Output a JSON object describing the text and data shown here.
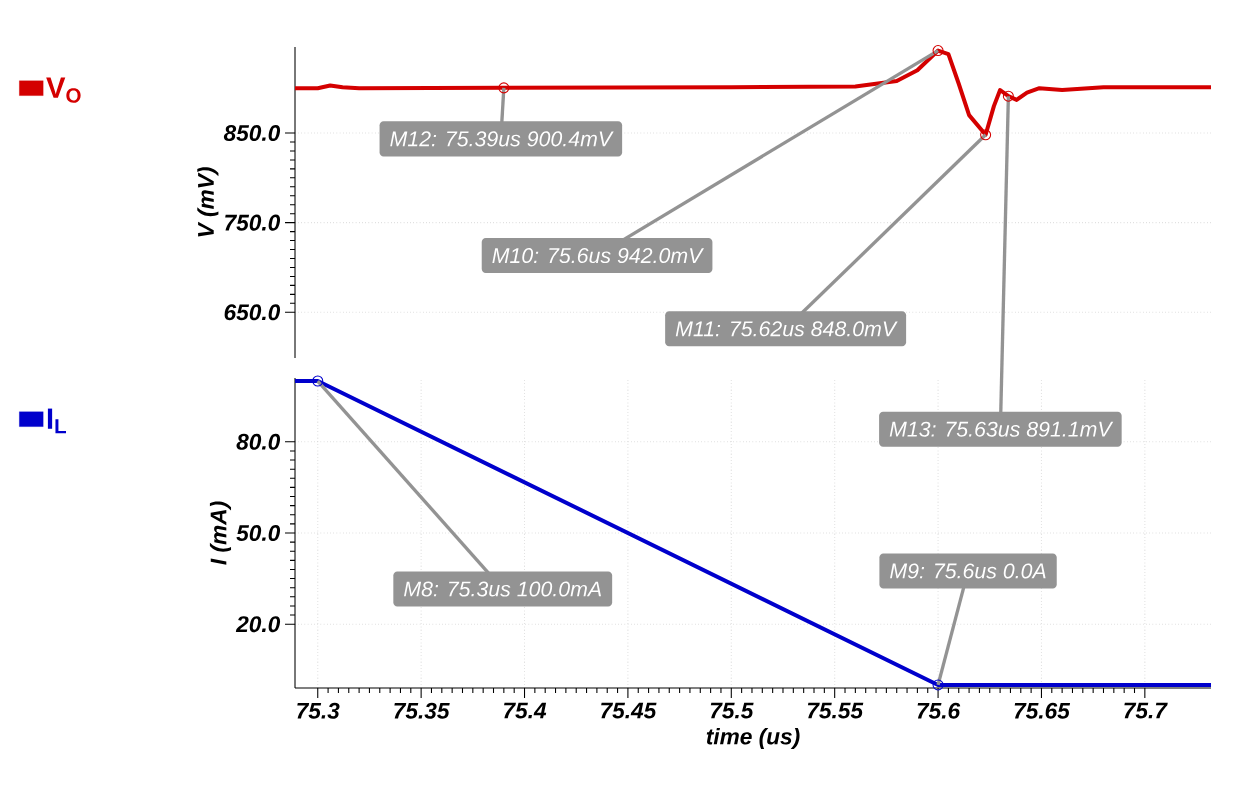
{
  "chart_data": [
    {
      "type": "line",
      "ylabel": "V (mV)",
      "xlim": [
        75.289,
        75.732
      ],
      "ylim": [
        599,
        946
      ],
      "xticks": [
        75.3,
        75.35,
        75.4,
        75.45,
        75.5,
        75.55,
        75.6,
        75.65,
        75.7
      ],
      "yticks": [
        {
          "value": 650,
          "label": "650.0"
        },
        {
          "value": 750,
          "label": "750.0"
        },
        {
          "value": 850,
          "label": "850.0"
        }
      ],
      "tick_labels": "y",
      "grid": true,
      "legend": "left",
      "series": [
        {
          "name": "V$_{O}$",
          "color": "#d40000",
          "x": [
            75.289,
            75.3,
            75.306,
            75.312,
            75.32,
            75.39,
            75.5,
            75.56,
            75.58,
            75.59,
            75.6,
            75.605,
            75.61,
            75.615,
            75.623,
            75.627,
            75.63,
            75.634,
            75.638,
            75.643,
            75.649,
            75.66,
            75.68,
            75.732
          ],
          "values": [
            900,
            900,
            903,
            901,
            900,
            900.4,
            901,
            902,
            908,
            920,
            942,
            938,
            905,
            870,
            848,
            880,
            898,
            891.1,
            887,
            895,
            900,
            898,
            901,
            901
          ]
        }
      ],
      "annotations": [
        {
          "text": "M12: 75.39us 900.4mV",
          "x": 75.39,
          "y": 900.4
        },
        {
          "text": "M10: 75.6us 942.0mV",
          "x": 75.6,
          "y": 942
        },
        {
          "text": "M11: 75.62us 848.0mV",
          "x": 75.623,
          "y": 848
        },
        {
          "text": "M13: 75.63us 891.1mV",
          "x": 75.634,
          "y": 891.1
        }
      ]
    },
    {
      "type": "line",
      "ylabel": "I (mA)",
      "xlabel": "time (us)",
      "xlim": [
        75.289,
        75.732
      ],
      "ylim": [
        -1,
        101
      ],
      "xticks": [
        75.3,
        75.35,
        75.4,
        75.45,
        75.5,
        75.55,
        75.6,
        75.65,
        75.7
      ],
      "yticks": [
        {
          "value": 20,
          "label": "20.0"
        },
        {
          "value": 50,
          "label": "50.0"
        },
        {
          "value": 80,
          "label": "80.0"
        }
      ],
      "grid": true,
      "legend": "left",
      "series": [
        {
          "name": "I$_{L}$",
          "color": "#0000cc",
          "x": [
            75.289,
            75.3,
            75.6,
            75.732
          ],
          "values": [
            100,
            100,
            0,
            0
          ]
        }
      ],
      "annotations": [
        {
          "text": "M8: 75.3us 100.0mA",
          "x": 75.3,
          "y": 100
        },
        {
          "text": "M9: 75.6us 0.0A",
          "x": 75.6,
          "y": 0
        }
      ]
    }
  ]
}
